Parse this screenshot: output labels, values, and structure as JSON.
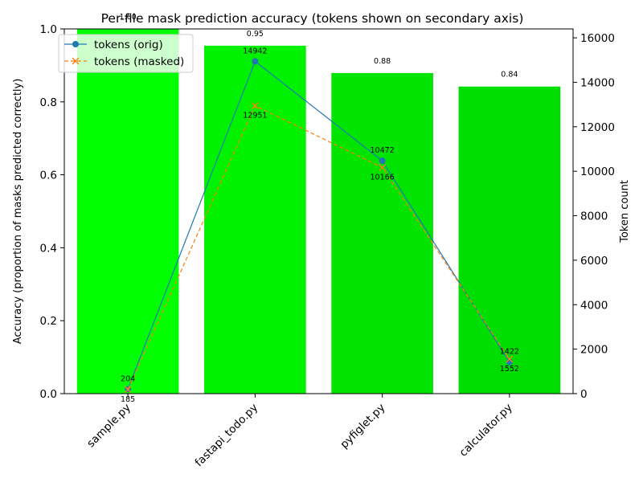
{
  "chart_data": {
    "type": "bar",
    "title": "Per-file mask prediction accuracy (tokens shown on secondary axis)",
    "categories": [
      "sample.py",
      "fastapi_todo.py",
      "pyfiglet.py",
      "calculator.py"
    ],
    "values": [
      1.0,
      0.954,
      0.879,
      0.842
    ],
    "bar_labels": [
      "1.00",
      "0.95",
      "0.88",
      "0.84"
    ],
    "bar_colors": [
      "#00ff00",
      "#00f200",
      "#00e400",
      "#00dd00"
    ],
    "ylabel": "Accuracy (proportion of masks predicted correctly)",
    "ylim": [
      0,
      1.0
    ],
    "yticks": [
      "0.0",
      "0.2",
      "0.4",
      "0.6",
      "0.8",
      "1.0"
    ],
    "y2label": "Token count",
    "y2lim": [
      0,
      16400
    ],
    "y2ticks": [
      "0",
      "2000",
      "4000",
      "6000",
      "8000",
      "10000",
      "12000",
      "14000",
      "16000"
    ],
    "series": [
      {
        "name": "tokens (orig)",
        "values": [
          204,
          14942,
          10472,
          1422
        ],
        "labels": [
          "204",
          "14942",
          "10472",
          "1422"
        ],
        "color": "#1f77b4",
        "marker": "circle",
        "line": "solid"
      },
      {
        "name": "tokens (masked)",
        "values": [
          185,
          12951,
          10166,
          1552
        ],
        "labels": [
          "185",
          "12951",
          "10166",
          "1552"
        ],
        "color": "#ff7f0e",
        "marker": "x",
        "line": "dashed"
      }
    ],
    "grid": false,
    "legend": "top-left"
  }
}
